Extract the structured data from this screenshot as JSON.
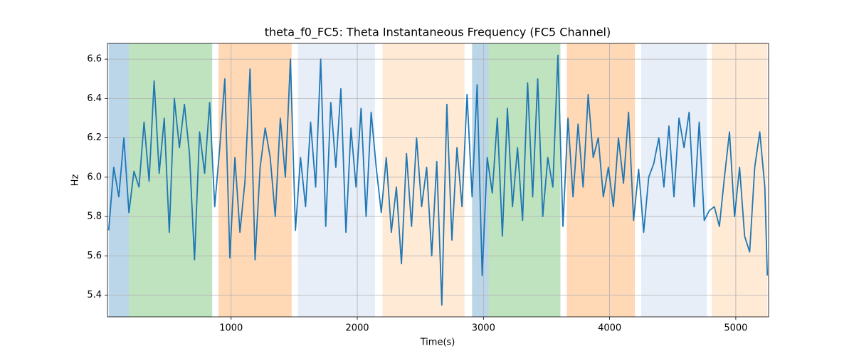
{
  "chart_data": {
    "type": "line",
    "title": "theta_f0_FC5: Theta Instantaneous Frequency (FC5 Channel)",
    "x_label": "Time(s)",
    "y_label": "Hz",
    "xlim": [
      20,
      5260
    ],
    "ylim": [
      5.29,
      6.68
    ],
    "xticks": [
      1000,
      2000,
      3000,
      4000,
      5000
    ],
    "yticks": [
      5.4,
      5.6,
      5.8,
      {
        "value": 6,
        "label": "6.0"
      },
      6.2,
      6.4,
      6.6
    ],
    "grid": true,
    "span_alpha": 0.3,
    "spans": [
      {
        "start": 30,
        "end": 190,
        "color": "#1f77b4"
      },
      {
        "start": 190,
        "end": 850,
        "color": "#2ca02c"
      },
      {
        "start": 900,
        "end": 1480,
        "color": "#ff7f0e"
      },
      {
        "start": 1530,
        "end": 2140,
        "color": "#aec7e8"
      },
      {
        "start": 2200,
        "end": 2850,
        "color": "#ffbb78"
      },
      {
        "start": 2910,
        "end": 3040,
        "color": "#1f77b4"
      },
      {
        "start": 3040,
        "end": 3610,
        "color": "#2ca02c"
      },
      {
        "start": 3660,
        "end": 4200,
        "color": "#ff7f0e"
      },
      {
        "start": 4250,
        "end": 4770,
        "color": "#aec7e8"
      },
      {
        "start": 4810,
        "end": 5250,
        "color": "#ffbb78"
      }
    ],
    "x": [
      30,
      70,
      110,
      150,
      190,
      230,
      270,
      310,
      350,
      390,
      430,
      470,
      510,
      550,
      590,
      630,
      670,
      710,
      750,
      790,
      830,
      870,
      910,
      950,
      990,
      1030,
      1070,
      1110,
      1150,
      1190,
      1230,
      1270,
      1310,
      1350,
      1390,
      1430,
      1470,
      1510,
      1550,
      1590,
      1630,
      1670,
      1710,
      1750,
      1790,
      1830,
      1870,
      1910,
      1950,
      1990,
      2030,
      2070,
      2110,
      2150,
      2190,
      2230,
      2270,
      2310,
      2350,
      2390,
      2430,
      2470,
      2510,
      2550,
      2590,
      2630,
      2670,
      2710,
      2750,
      2790,
      2830,
      2870,
      2910,
      2950,
      2990,
      3030,
      3070,
      3110,
      3150,
      3190,
      3230,
      3270,
      3310,
      3350,
      3390,
      3430,
      3470,
      3510,
      3550,
      3590,
      3630,
      3670,
      3710,
      3750,
      3790,
      3830,
      3870,
      3910,
      3950,
      3990,
      4030,
      4070,
      4110,
      4150,
      4190,
      4230,
      4270,
      4310,
      4350,
      4390,
      4430,
      4470,
      4510,
      4550,
      4590,
      4630,
      4670,
      4710,
      4750,
      4790,
      4830,
      4870,
      4910,
      4950,
      4990,
      5030,
      5070,
      5110,
      5150,
      5190,
      5230,
      5250
    ],
    "series": [
      {
        "color": "#1f77b4",
        "values": [
          5.73,
          6.05,
          5.9,
          6.2,
          5.82,
          6.03,
          5.95,
          6.28,
          5.98,
          6.49,
          6.02,
          6.3,
          5.72,
          6.4,
          6.15,
          6.37,
          6.12,
          5.58,
          6.23,
          6.02,
          6.38,
          5.85,
          6.15,
          6.5,
          5.59,
          6.1,
          5.72,
          5.98,
          6.55,
          5.58,
          6.05,
          6.25,
          6.1,
          5.8,
          6.3,
          6.0,
          6.6,
          5.73,
          6.1,
          5.85,
          6.28,
          5.95,
          6.6,
          5.75,
          6.38,
          6.05,
          6.45,
          5.72,
          6.25,
          5.95,
          6.35,
          5.8,
          6.33,
          6.05,
          5.82,
          6.1,
          5.72,
          5.95,
          5.56,
          6.12,
          5.75,
          6.2,
          5.85,
          6.05,
          5.6,
          6.08,
          5.35,
          6.37,
          5.68,
          6.15,
          5.85,
          6.42,
          5.9,
          6.47,
          5.5,
          6.1,
          5.92,
          6.3,
          5.7,
          6.35,
          5.85,
          6.15,
          5.78,
          6.48,
          5.9,
          6.5,
          5.8,
          6.1,
          5.95,
          6.62,
          5.75,
          6.3,
          5.9,
          6.27,
          5.95,
          6.42,
          6.1,
          6.2,
          5.9,
          6.05,
          5.85,
          6.2,
          5.97,
          6.33,
          5.78,
          6.04,
          5.72,
          6.0,
          6.07,
          6.2,
          5.95,
          6.26,
          5.9,
          6.3,
          6.15,
          6.33,
          5.85,
          6.28,
          5.78,
          5.83,
          5.85,
          5.75,
          6.0,
          6.23,
          5.8,
          6.05,
          5.7,
          5.62,
          6.05,
          6.23,
          5.95,
          5.5
        ]
      }
    ]
  }
}
